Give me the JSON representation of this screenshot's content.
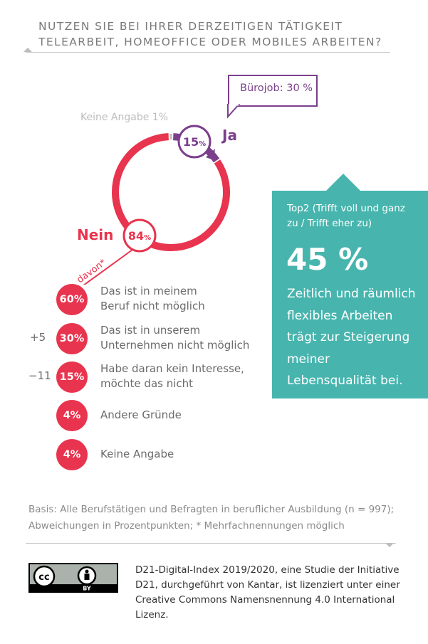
{
  "title": "NUTZEN SIE BEI IHRER DERZEITIGEN TÄTIGKEIT TELEARBEIT, HOMEOFFICE ODER MOBILES ARBEITEN?",
  "donut": {
    "nein_label": "Nein",
    "nein_value": "84",
    "ja_label": "Ja",
    "ja_value": "15",
    "keine_angabe": "Keine Angabe 1%",
    "buerojob": "Bürojob: 30 %",
    "davon": "davon*",
    "pct_sign": "%"
  },
  "reasons": [
    {
      "value": "60%",
      "text": "Das ist in meinem\nBeruf nicht möglich",
      "delta": ""
    },
    {
      "value": "30%",
      "text": "Das ist in unserem\nUnternehmen nicht möglich",
      "delta": "+5"
    },
    {
      "value": "15%",
      "text": "Habe daran kein Interesse,\nmöchte das nicht",
      "delta": "−11"
    },
    {
      "value": "4%",
      "text": "Andere Gründe",
      "delta": ""
    },
    {
      "value": "4%",
      "text": "Keine Angabe",
      "delta": ""
    }
  ],
  "highlight": {
    "subtitle": "Top2 (Trifft voll und ganz zu / Trifft eher zu)",
    "value": "45 %",
    "text": "Zeitlich und räumlich flexibles Arbeiten trägt zur Steigerung meiner Lebensqualität bei."
  },
  "basis": "Basis: Alle Berufstätigen und Befragten in beruflicher Ausbildung (n = 997); Abweichungen in Prozentpunkten; * Mehrfachnennungen möglich",
  "license": "D21-Digital-Index 2019/2020, eine Studie der Initiative D21, durchgeführt von Kantar, ist lizenziert unter einer Creative Commons Namensnennung 4.0 International Lizenz.",
  "cc_badge": {
    "cc": "cc",
    "by": "BY"
  },
  "colors": {
    "nein": "#e8344e",
    "ja": "#7b3f8c",
    "keine_angabe": "#c0c0c0",
    "teal": "#47b5ae"
  },
  "chart_data": {
    "type": "pie",
    "categories": [
      "Nein",
      "Ja",
      "Keine Angabe"
    ],
    "values": [
      84,
      15,
      1
    ],
    "title": "NUTZEN SIE BEI IHRER DERZEITIGEN TÄTIGKEIT TELEARBEIT, HOMEOFFICE ODER MOBILES ARBEITEN?",
    "annotation": "Bürojob: 30 %",
    "sub_breakdown": {
      "label": "davon*",
      "categories": [
        "Das ist in meinem Beruf nicht möglich",
        "Das ist in unserem Unternehmen nicht möglich",
        "Habe daran kein Interesse, möchte das nicht",
        "Andere Gründe",
        "Keine Angabe"
      ],
      "values": [
        60,
        30,
        15,
        4,
        4
      ],
      "deltas": [
        null,
        5,
        -11,
        null,
        null
      ]
    }
  }
}
